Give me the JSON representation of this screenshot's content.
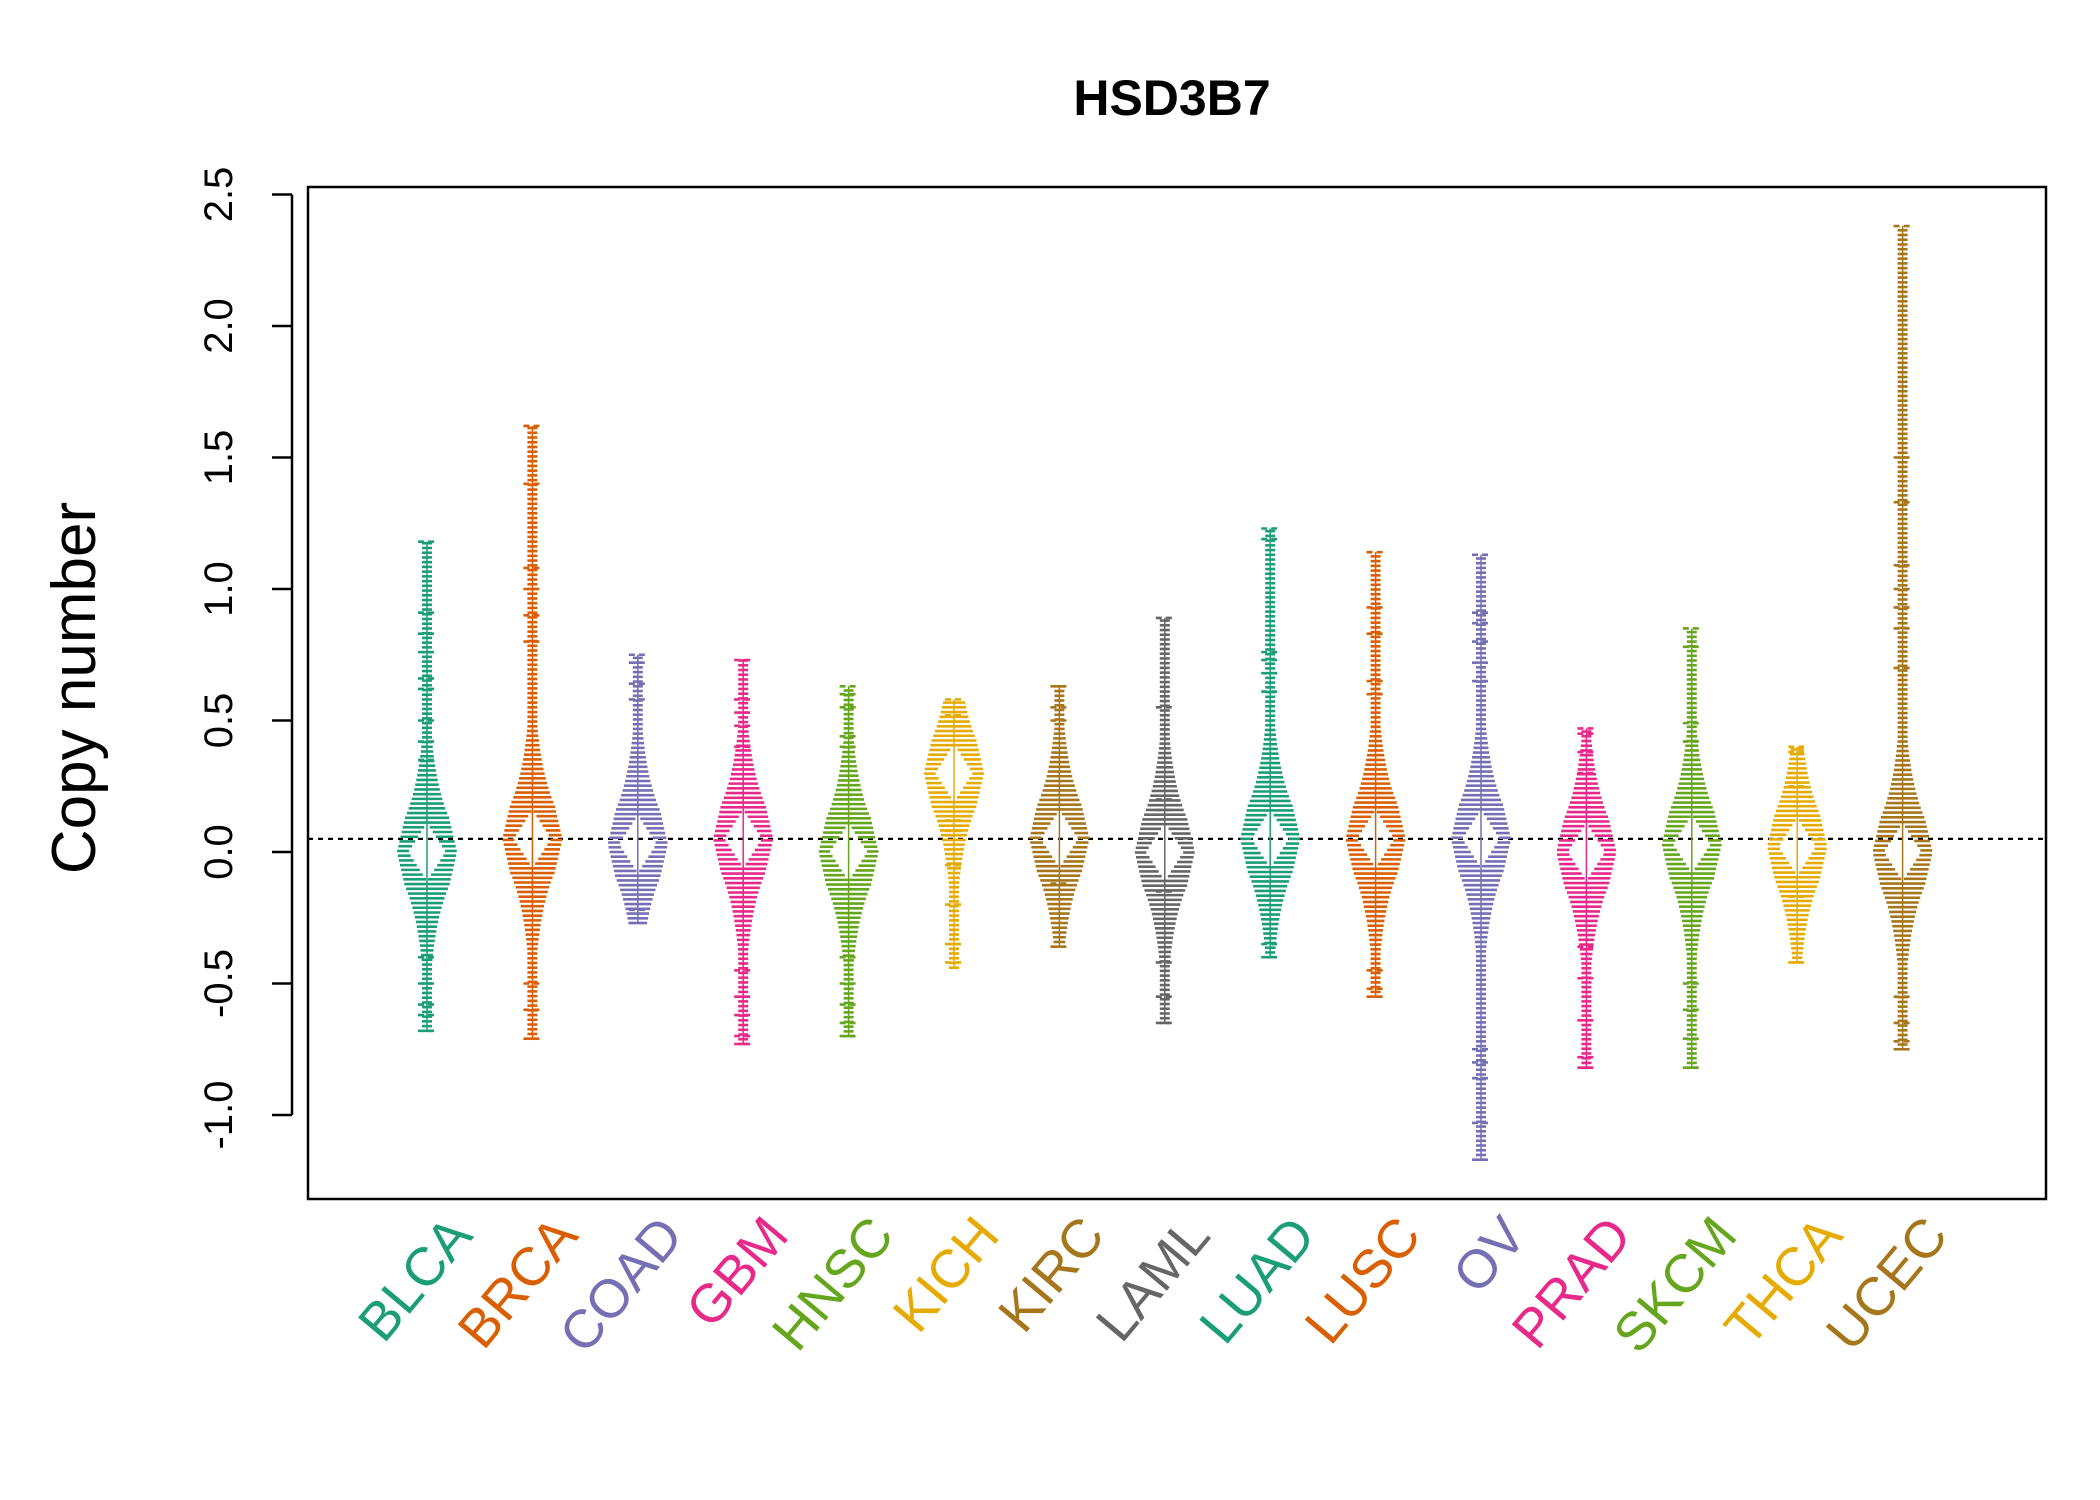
{
  "chart_data": {
    "type": "beeswarm",
    "title": "HSD3B7",
    "ylabel": "Copy number",
    "xlabel": "",
    "ylim": [
      -1.3,
      2.5
    ],
    "yticks": [
      -1.0,
      -0.5,
      0.0,
      0.5,
      1.0,
      1.5,
      2.0,
      2.5
    ],
    "ytick_labels": [
      "-1.0",
      "-0.5",
      "0.0",
      "0.5",
      "1.0",
      "1.5",
      "2.0",
      "2.5"
    ],
    "reference_line": 0.05,
    "grid": false,
    "legend": "none",
    "categories": [
      {
        "name": "BLCA",
        "color": "#1b9e77",
        "min": -0.68,
        "max": 1.18,
        "center": 0.0,
        "outliers": [
          1.18,
          0.91,
          0.83,
          0.76,
          0.66,
          0.62,
          0.5,
          0.42,
          0.35,
          -0.4,
          -0.5,
          -0.58,
          -0.62,
          -0.68
        ]
      },
      {
        "name": "BRCA",
        "color": "#d95f02",
        "min": -0.71,
        "max": 1.62,
        "center": 0.05,
        "outliers": [
          1.62,
          1.4,
          1.08,
          1.0,
          0.9,
          0.8,
          -0.5,
          -0.6,
          -0.71
        ]
      },
      {
        "name": "COAD",
        "color": "#7570b3",
        "min": -0.27,
        "max": 0.75,
        "center": 0.03,
        "outliers": [
          0.75,
          0.72,
          0.64,
          0.58,
          -0.22,
          -0.27
        ]
      },
      {
        "name": "GBM",
        "color": "#e7298a",
        "min": -0.73,
        "max": 0.73,
        "center": 0.05,
        "outliers": [
          0.73,
          0.58,
          0.53,
          0.48,
          0.4,
          -0.45,
          -0.55,
          -0.62,
          -0.7,
          -0.73
        ]
      },
      {
        "name": "HNSC",
        "color": "#66a61e",
        "min": -0.7,
        "max": 0.63,
        "center": 0.0,
        "outliers": [
          0.63,
          0.6,
          0.55,
          0.44,
          0.4,
          -0.4,
          -0.5,
          -0.58,
          -0.65,
          -0.7
        ]
      },
      {
        "name": "KICH",
        "color": "#e6ab02",
        "min": -0.44,
        "max": 0.58,
        "center": 0.3,
        "outliers": [
          0.58,
          0.52,
          0.12,
          0.08,
          -0.05,
          -0.2,
          -0.35,
          -0.42
        ]
      },
      {
        "name": "KIRC",
        "color": "#a6761d",
        "min": -0.36,
        "max": 0.63,
        "center": 0.05,
        "outliers": [
          0.63,
          0.55,
          0.5,
          -0.12,
          -0.36
        ]
      },
      {
        "name": "LAML",
        "color": "#666666",
        "min": -0.65,
        "max": 0.89,
        "center": 0.0,
        "outliers": [
          0.89,
          0.55,
          0.2,
          0.16,
          -0.15,
          -0.42,
          -0.55,
          -0.65
        ]
      },
      {
        "name": "LUAD",
        "color": "#1b9e77",
        "min": -0.4,
        "max": 1.23,
        "center": 0.05,
        "outliers": [
          1.23,
          1.19,
          0.76,
          0.73,
          0.68,
          0.61,
          -0.35,
          -0.4
        ]
      },
      {
        "name": "LUSC",
        "color": "#d95f02",
        "min": -0.55,
        "max": 1.14,
        "center": 0.05,
        "outliers": [
          1.14,
          0.93,
          0.83,
          0.65,
          0.6,
          -0.45,
          -0.52,
          -0.55
        ]
      },
      {
        "name": "OV",
        "color": "#7570b3",
        "min": -1.17,
        "max": 1.13,
        "center": 0.05,
        "outliers": [
          1.13,
          0.91,
          0.87,
          0.8,
          0.72,
          0.65,
          -0.75,
          -0.8,
          -0.86,
          -1.03,
          -1.17
        ]
      },
      {
        "name": "PRAD",
        "color": "#e7298a",
        "min": -0.82,
        "max": 0.47,
        "center": 0.0,
        "outliers": [
          0.47,
          0.45,
          0.38,
          0.3,
          -0.36,
          -0.48,
          -0.64,
          -0.78,
          -0.82
        ]
      },
      {
        "name": "SKCM",
        "color": "#66a61e",
        "min": -0.82,
        "max": 0.85,
        "center": 0.03,
        "outliers": [
          0.85,
          0.78,
          0.49,
          0.42,
          -0.5,
          -0.6,
          -0.71,
          -0.82
        ]
      },
      {
        "name": "THCA",
        "color": "#e6ab02",
        "min": -0.42,
        "max": 0.4,
        "center": 0.02,
        "outliers": [
          0.4,
          0.38,
          0.3,
          0.25,
          -0.17,
          -0.42
        ]
      },
      {
        "name": "UCEC",
        "color": "#a6761d",
        "min": -0.75,
        "max": 2.38,
        "center": 0.0,
        "outliers": [
          2.38,
          1.5,
          1.33,
          1.09,
          1.0,
          0.93,
          0.85,
          0.7,
          -0.55,
          -0.65,
          -0.72,
          -0.75
        ]
      }
    ]
  }
}
